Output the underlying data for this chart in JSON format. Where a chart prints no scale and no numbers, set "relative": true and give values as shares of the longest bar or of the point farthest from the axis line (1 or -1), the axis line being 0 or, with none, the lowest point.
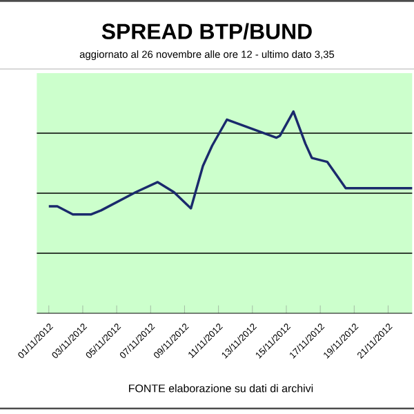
{
  "chart_data": {
    "type": "line",
    "title": "SPREAD  BTP/BUND",
    "subtitle": "aggiornato al 26 novembre alle ore 12 - ultimo dato 3,35",
    "relative": true,
    "grid": "y",
    "x": [
      "2012-11-01T00:00",
      "2012-11-01T12:00",
      "2012-11-02T10:00",
      "2012-11-03T12:00",
      "2012-11-04T02:00",
      "2012-11-06T03:00",
      "2012-11-07T10:00",
      "2012-11-08T09:00",
      "2012-11-09T09:00",
      "2012-11-10T02:00",
      "2012-11-10T15:00",
      "2012-11-11T12:00",
      "2012-11-14T10:00",
      "2012-11-14T15:00",
      "2012-11-15T10:00",
      "2012-11-16T03:00",
      "2012-11-16T12:00",
      "2012-11-17T10:00",
      "2012-11-18T12:00",
      "2012-11-19T22:00",
      "2012-11-20T03:00",
      "2012-11-22T10:00"
    ],
    "xlim": [
      "2012-10-31T07:00",
      "2012-11-22T10:00"
    ],
    "xticks": [
      {
        "value": "2012-11-01",
        "label": "01/11/2012"
      },
      {
        "value": "2012-11-03",
        "label": "03/11/2012"
      },
      {
        "value": "2012-11-05",
        "label": "05/11/2012"
      },
      {
        "value": "2012-11-07",
        "label": "07/11/2012"
      },
      {
        "value": "2012-11-09",
        "label": "09/11/2012"
      },
      {
        "value": "2012-11-11",
        "label": "11/11/2012"
      },
      {
        "value": "2012-11-13",
        "label": "13/11/2012"
      },
      {
        "value": "2012-11-15",
        "label": "15/11/2012"
      },
      {
        "value": "2012-11-17",
        "label": "17/11/2012"
      },
      {
        "value": "2012-11-19",
        "label": "19/11/2012"
      },
      {
        "value": "2012-11-21",
        "label": "21/11/2012"
      }
    ],
    "series": [
      {
        "color": "#1a2a6c",
        "values": [
          0.53,
          0.53,
          0.49,
          0.49,
          0.51,
          0.6,
          0.65,
          0.6,
          0.52,
          0.73,
          0.83,
          0.96,
          0.87,
          0.88,
          1,
          0.84,
          0.77,
          0.75,
          0.62,
          0.62,
          0.62,
          0.62
        ]
      }
    ],
    "annotations": [
      "FONTE elaborazione su dati di archivi"
    ]
  }
}
